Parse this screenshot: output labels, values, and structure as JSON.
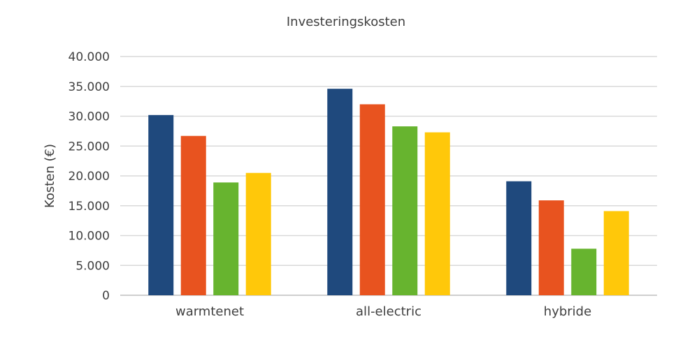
{
  "chart_data": {
    "type": "bar",
    "title": "Investeringskosten",
    "ylabel": "Kosten (€)",
    "xlabel": "",
    "ylim": [
      0,
      40000
    ],
    "yticks": [
      0,
      5000,
      10000,
      15000,
      20000,
      25000,
      30000,
      35000,
      40000
    ],
    "ytick_labels": [
      "0",
      "5.000",
      "10.000",
      "15.000",
      "20.000",
      "25.000",
      "30.000",
      "35.000",
      "40.000"
    ],
    "grid": true,
    "categories": [
      "warmtenet",
      "all-electric",
      "hybride"
    ],
    "series": [
      {
        "color": "#1f497d",
        "values": [
          30200,
          34600,
          19100
        ]
      },
      {
        "color": "#e8531f",
        "values": [
          26700,
          32000,
          15900
        ]
      },
      {
        "color": "#67b42f",
        "values": [
          18900,
          28300,
          7800
        ]
      },
      {
        "color": "#ffc80a",
        "values": [
          20500,
          27300,
          14100
        ]
      }
    ]
  }
}
